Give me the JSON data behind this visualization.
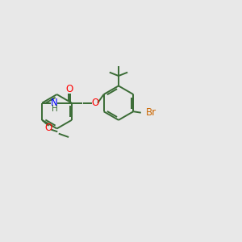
{
  "background_color": "#e8e8e8",
  "bond_color": "#3a6b35",
  "atom_colors": {
    "O": "#ff0000",
    "N": "#0000ff",
    "Br": "#cc6600"
  },
  "figsize": [
    3.0,
    3.0
  ],
  "dpi": 100,
  "lw": 1.4,
  "fs": 8.5
}
